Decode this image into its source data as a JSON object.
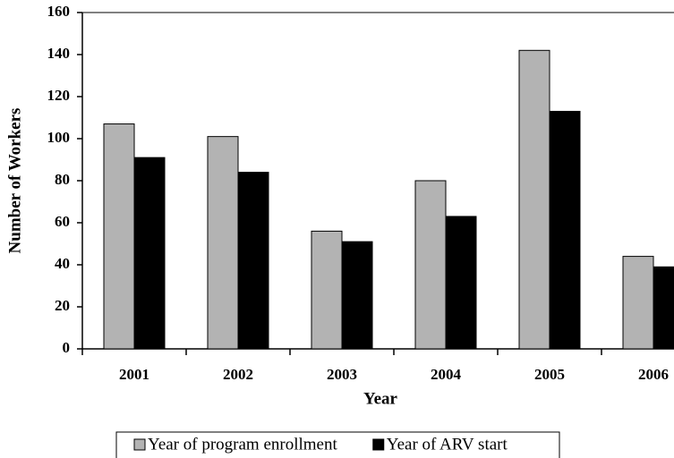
{
  "chart_data": {
    "type": "bar",
    "x_label": "Year",
    "y_label": "Number of Workers",
    "categories": [
      "2001",
      "2002",
      "2003",
      "2004",
      "2005",
      "2006"
    ],
    "series": [
      {
        "name": "Year of program enrollment",
        "color": "#b3b3b3",
        "values": [
          107,
          101,
          56,
          80,
          142,
          44
        ]
      },
      {
        "name": "Year of ARV start",
        "color": "#000000",
        "values": [
          91,
          84,
          51,
          63,
          113,
          39
        ]
      }
    ],
    "ylim": [
      0,
      160
    ],
    "yticks": [
      0,
      20,
      40,
      60,
      80,
      100,
      120,
      140,
      160
    ],
    "grid": false,
    "legend": "bottom"
  }
}
